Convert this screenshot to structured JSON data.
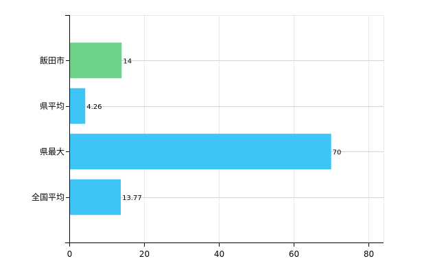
{
  "chart_data": {
    "type": "bar",
    "orientation": "horizontal",
    "categories": [
      "飯田市",
      "県平均",
      "県最大",
      "全国平均"
    ],
    "values": [
      14,
      4.26,
      70,
      13.77
    ],
    "value_labels": [
      "14",
      "4.26",
      "70",
      "13.77"
    ],
    "bar_colors": [
      "#6dd38b",
      "#3dc5f5",
      "#3dc5f5",
      "#3dc5f5"
    ],
    "xlim": [
      0,
      84
    ],
    "x_ticks": [
      0,
      20,
      40,
      60,
      80
    ],
    "x_tick_labels": [
      "0",
      "20",
      "40",
      "60",
      "80"
    ],
    "grid": true,
    "legend": "none",
    "title": "",
    "xlabel": "",
    "ylabel": ""
  }
}
